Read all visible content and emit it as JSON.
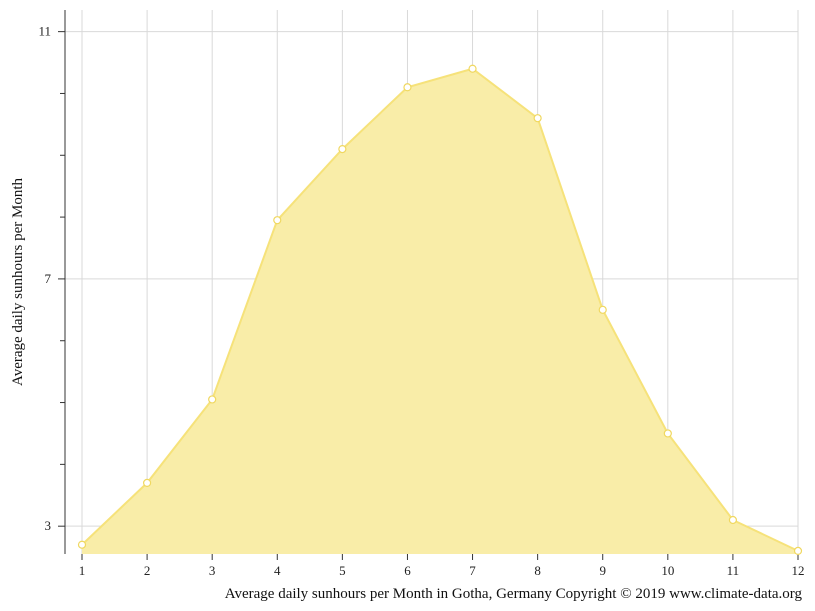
{
  "chart_data": {
    "type": "area",
    "x": [
      1,
      2,
      3,
      4,
      5,
      6,
      7,
      8,
      9,
      10,
      11,
      12
    ],
    "values": [
      2.7,
      3.7,
      5.05,
      7.95,
      9.1,
      10.1,
      10.4,
      9.6,
      6.5,
      4.5,
      3.1,
      2.6
    ],
    "ylabel": "Average daily sunhours per Month",
    "xlabel": "Average daily sunhours per Month in Gotha, Germany Copyright © 2019 www.climate-data.org",
    "y_ticks_labeled": [
      3,
      7,
      11
    ],
    "ylim": [
      2.55,
      11.35
    ],
    "xlim": [
      1,
      12
    ],
    "grid": true,
    "colors": {
      "fill": "#f9eda8",
      "line": "#f6e27a",
      "marker": "#f0d860"
    }
  }
}
